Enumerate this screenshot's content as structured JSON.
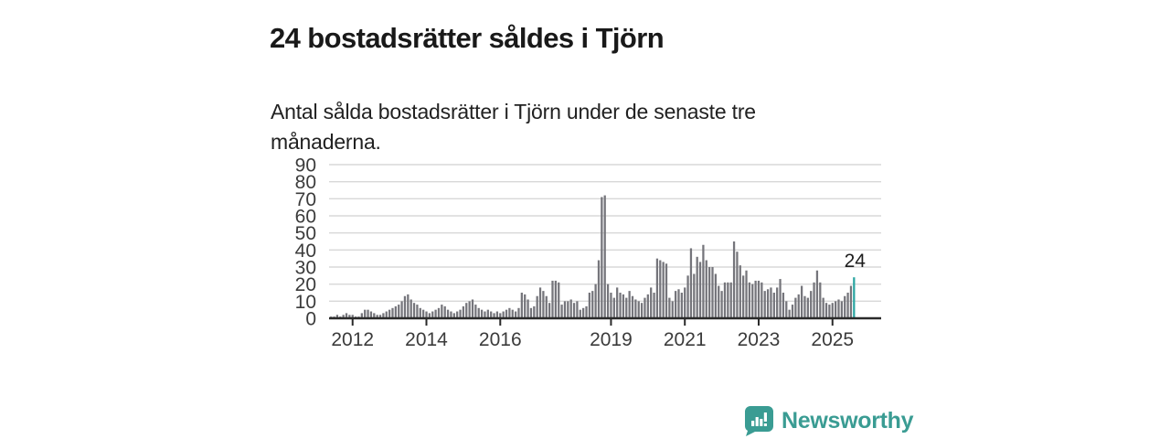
{
  "header": {
    "title": "24 bostadsrätter såldes i Tjörn",
    "subtitle": "Antal sålda bostadsrätter i Tjörn under de senaste tre månaderna."
  },
  "footer": {
    "brand": "Newsworthy",
    "brand_color": "#3a9c93",
    "logo_icon": "speech-bubble-bar-chart"
  },
  "chart_data": {
    "type": "bar",
    "title": "24 bostadsrätter såldes i Tjörn",
    "subtitle": "Antal sålda bostadsrätter i Tjörn under de senaste tre månaderna.",
    "frequency": "monthly",
    "start_month": "2011-06",
    "end_month": "2025-08",
    "values": [
      1,
      1,
      2,
      1,
      2,
      3,
      2,
      2,
      1,
      1,
      3,
      5,
      5,
      4,
      3,
      2,
      2,
      3,
      4,
      5,
      6,
      7,
      8,
      10,
      13,
      14,
      11,
      9,
      8,
      6,
      5,
      4,
      3,
      4,
      5,
      6,
      8,
      7,
      5,
      4,
      3,
      4,
      5,
      7,
      9,
      10,
      11,
      8,
      6,
      5,
      4,
      5,
      4,
      3,
      4,
      3,
      4,
      5,
      6,
      5,
      4,
      6,
      15,
      14,
      11,
      6,
      7,
      13,
      18,
      16,
      13,
      9,
      22,
      22,
      21,
      8,
      10,
      10,
      11,
      9,
      10,
      5,
      6,
      7,
      15,
      16,
      20,
      34,
      71,
      72,
      20,
      15,
      12,
      18,
      15,
      14,
      12,
      16,
      13,
      11,
      10,
      9,
      12,
      14,
      18,
      15,
      35,
      34,
      33,
      32,
      12,
      10,
      16,
      17,
      15,
      18,
      25,
      41,
      26,
      36,
      33,
      43,
      34,
      30,
      30,
      26,
      19,
      16,
      21,
      21,
      21,
      45,
      39,
      31,
      25,
      28,
      21,
      20,
      22,
      22,
      21,
      16,
      17,
      18,
      15,
      18,
      23,
      15,
      10,
      5,
      8,
      12,
      14,
      19,
      13,
      12,
      16,
      21,
      28,
      21,
      12,
      9,
      8,
      9,
      10,
      11,
      10,
      13,
      15,
      19,
      24
    ],
    "ylabel": "",
    "xlabel": "",
    "ylim": [
      0,
      90
    ],
    "yticks": [
      0,
      10,
      20,
      30,
      40,
      50,
      60,
      70,
      80,
      90
    ],
    "xtick_years": [
      2012,
      2014,
      2016,
      2019,
      2021,
      2023,
      2025
    ],
    "grid": "horizontal",
    "legend": "none",
    "bar_color": "#75757b",
    "highlight_last": true,
    "highlight_color": "#2ba6a2",
    "annotation": {
      "text": "24",
      "target": "last-bar"
    }
  }
}
